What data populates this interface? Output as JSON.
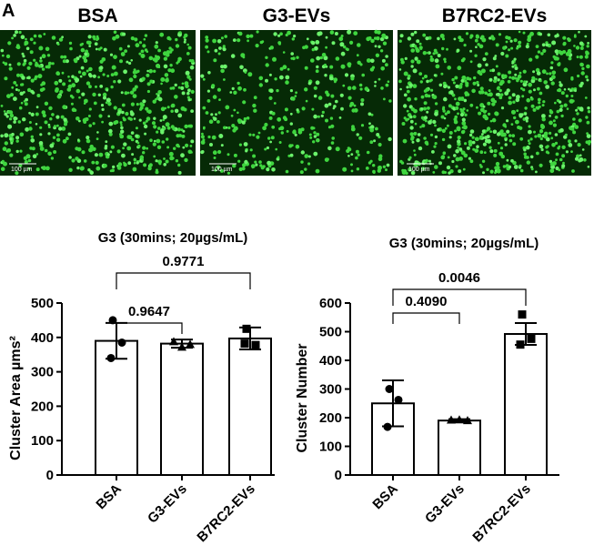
{
  "panel_label": "A",
  "images": [
    {
      "title": "BSA",
      "scale_label": "100 µm"
    },
    {
      "title": "G3-EVs",
      "scale_label": "100 µm"
    },
    {
      "title": "B7RC2-EVs",
      "scale_label": "100 µm"
    }
  ],
  "chart_data": [
    {
      "type": "bar",
      "title": "G3 (30mins; 20µgs/mL)",
      "y_label": "Cluster Area µms²",
      "categories": [
        "BSA",
        "G3-EVs",
        "B7RC2-EVs"
      ],
      "values": [
        390,
        382,
        397
      ],
      "errors": [
        52,
        12,
        32
      ],
      "points": [
        [
          450,
          385,
          340
        ],
        [
          388,
          372,
          380
        ],
        [
          425,
          378,
          382
        ]
      ],
      "markers": [
        "circle",
        "triangle",
        "square"
      ],
      "color": "#ffffff",
      "ylim": [
        0,
        500
      ],
      "yticks": [
        0,
        100,
        200,
        300,
        400,
        500
      ],
      "annotations": [
        {
          "text": "0.9647",
          "from": 0,
          "to": 1
        },
        {
          "text": "0.9771",
          "from": 0,
          "to": 2
        }
      ]
    },
    {
      "type": "bar",
      "title": "G3 (30mins; 20µgs/mL)",
      "y_label": "Cluster Number",
      "categories": [
        "BSA",
        "G3-EVs",
        "B7RC2-EVs"
      ],
      "values": [
        250,
        190,
        492
      ],
      "errors": [
        80,
        5,
        38
      ],
      "points": [
        [
          300,
          262,
          168
        ],
        [
          192,
          193,
          190
        ],
        [
          560,
          475,
          455
        ]
      ],
      "markers": [
        "circle",
        "triangle",
        "square"
      ],
      "color": "#ffffff",
      "ylim": [
        0,
        600
      ],
      "yticks": [
        0,
        100,
        200,
        300,
        400,
        500,
        600
      ],
      "annotations": [
        {
          "text": "0.4090",
          "from": 0,
          "to": 1
        },
        {
          "text": "0.0046",
          "from": 0,
          "to": 2
        }
      ]
    }
  ]
}
